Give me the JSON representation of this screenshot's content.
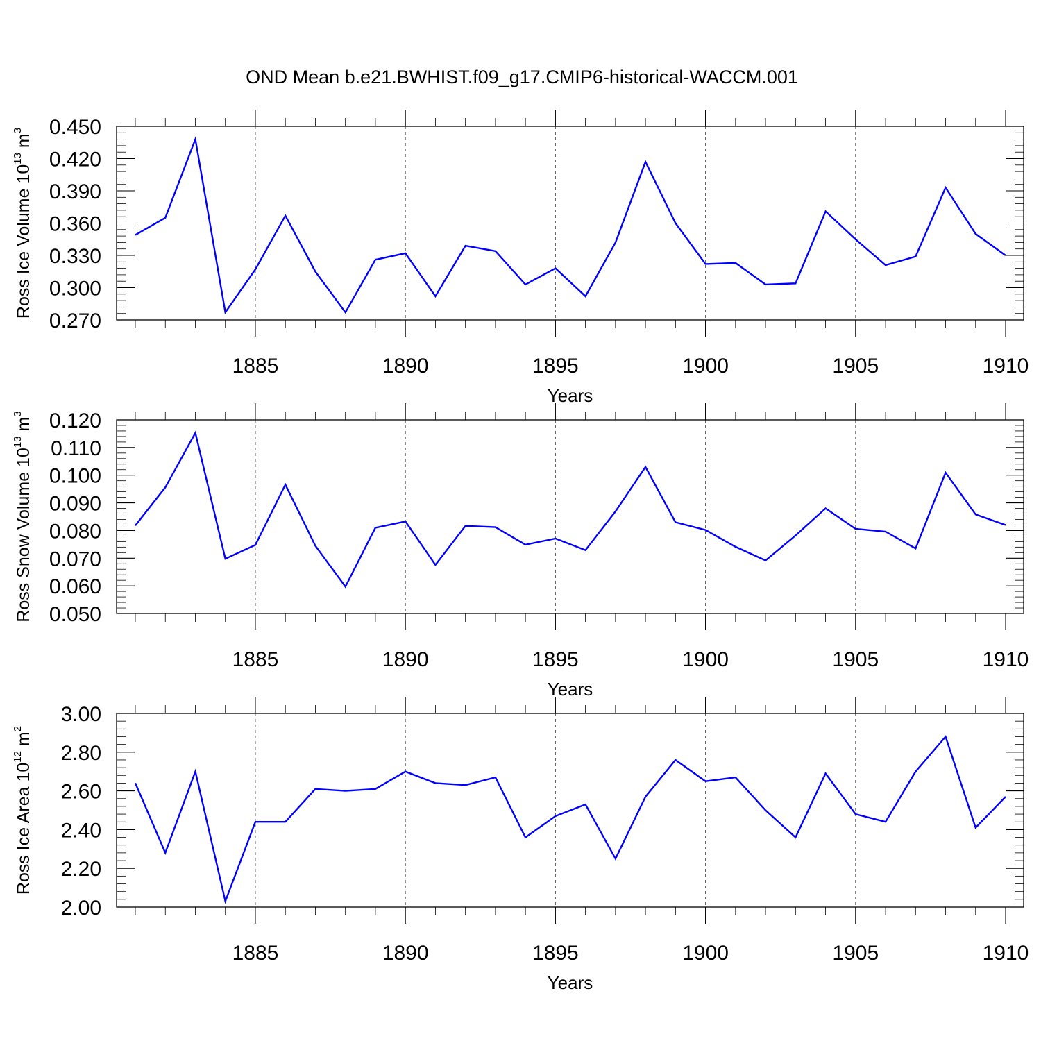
{
  "title": "OND Mean b.e21.BWHIST.f09_g17.CMIP6-historical-WACCM.001",
  "colors": {
    "series": "#0000ff",
    "grid": "#555555",
    "axes": "#000000"
  },
  "chart_data": [
    {
      "type": "line",
      "ylabel": {
        "text": "Ross Ice Volume 10",
        "exp": "13",
        "unit": " m",
        "unit_exp": "3"
      },
      "xlabel": "Years",
      "xlim": [
        1881,
        1910
      ],
      "ylim": [
        0.27,
        0.45
      ],
      "yticks": [
        "0.270",
        "0.300",
        "0.330",
        "0.360",
        "0.390",
        "0.420",
        "0.450"
      ],
      "xticks": [
        "1885",
        "1890",
        "1895",
        "1900",
        "1905",
        "1910"
      ],
      "grid": "vertical dashed at labeled years",
      "x": [
        1881,
        1882,
        1883,
        1884,
        1885,
        1886,
        1887,
        1888,
        1889,
        1890,
        1891,
        1892,
        1893,
        1894,
        1895,
        1896,
        1897,
        1898,
        1899,
        1900,
        1901,
        1902,
        1903,
        1904,
        1905,
        1906,
        1907,
        1908,
        1909,
        1910
      ],
      "values": [
        0.349,
        0.365,
        0.438,
        0.277,
        0.317,
        0.367,
        0.315,
        0.277,
        0.326,
        0.332,
        0.292,
        0.339,
        0.334,
        0.303,
        0.318,
        0.292,
        0.342,
        0.417,
        0.36,
        0.322,
        0.323,
        0.303,
        0.304,
        0.371,
        0.345,
        0.321,
        0.329,
        0.393,
        0.35,
        0.33
      ]
    },
    {
      "type": "line",
      "ylabel": {
        "text": "Ross Snow Volume 10",
        "exp": "13",
        "unit": " m",
        "unit_exp": "3"
      },
      "xlabel": "Years",
      "xlim": [
        1881,
        1910
      ],
      "ylim": [
        0.05,
        0.12
      ],
      "yticks": [
        "0.050",
        "0.060",
        "0.070",
        "0.080",
        "0.090",
        "0.100",
        "0.110",
        "0.120"
      ],
      "xticks": [
        "1885",
        "1890",
        "1895",
        "1900",
        "1905",
        "1910"
      ],
      "grid": "vertical dashed at labeled years",
      "x": [
        1881,
        1882,
        1883,
        1884,
        1885,
        1886,
        1887,
        1888,
        1889,
        1890,
        1891,
        1892,
        1893,
        1894,
        1895,
        1896,
        1897,
        1898,
        1899,
        1900,
        1901,
        1902,
        1903,
        1904,
        1905,
        1906,
        1907,
        1908,
        1909,
        1910
      ],
      "values": [
        0.0818,
        0.0956,
        0.1153,
        0.0698,
        0.0748,
        0.0966,
        0.0745,
        0.0597,
        0.081,
        0.0833,
        0.0676,
        0.0817,
        0.0812,
        0.0749,
        0.0771,
        0.0729,
        0.0869,
        0.103,
        0.083,
        0.0802,
        0.0741,
        0.0692,
        0.0782,
        0.088,
        0.0806,
        0.0796,
        0.0735,
        0.1009,
        0.0858,
        0.082
      ]
    },
    {
      "type": "line",
      "ylabel": {
        "text": "Ross Ice Area 10",
        "exp": "12",
        "unit": " m",
        "unit_exp": "2"
      },
      "xlabel": "Years",
      "xlim": [
        1881,
        1910
      ],
      "ylim": [
        2.0,
        3.0
      ],
      "yticks": [
        "2.00",
        "2.20",
        "2.40",
        "2.60",
        "2.80",
        "3.00"
      ],
      "xticks": [
        "1885",
        "1890",
        "1895",
        "1900",
        "1905",
        "1910"
      ],
      "grid": "vertical dashed at labeled years",
      "x": [
        1881,
        1882,
        1883,
        1884,
        1885,
        1886,
        1887,
        1888,
        1889,
        1890,
        1891,
        1892,
        1893,
        1894,
        1895,
        1896,
        1897,
        1898,
        1899,
        1900,
        1901,
        1902,
        1903,
        1904,
        1905,
        1906,
        1907,
        1908,
        1909,
        1910
      ],
      "values": [
        2.64,
        2.28,
        2.7,
        2.03,
        2.44,
        2.44,
        2.61,
        2.6,
        2.61,
        2.7,
        2.64,
        2.63,
        2.67,
        2.36,
        2.47,
        2.53,
        2.25,
        2.57,
        2.76,
        2.65,
        2.67,
        2.5,
        2.36,
        2.69,
        2.48,
        2.44,
        2.7,
        2.88,
        2.41,
        2.57
      ]
    }
  ]
}
